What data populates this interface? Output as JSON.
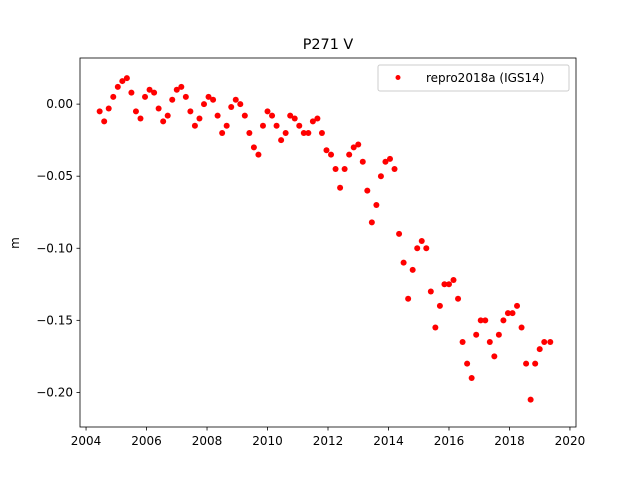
{
  "chart_data": {
    "type": "scatter",
    "title": "P271 V",
    "xlabel": "",
    "ylabel": "m",
    "xlim": [
      2003.8,
      2020.2
    ],
    "ylim": [
      -0.224,
      0.032
    ],
    "grid": false,
    "legend_position": "top-right",
    "x_ticks": [
      2004,
      2006,
      2008,
      2010,
      2012,
      2014,
      2016,
      2018,
      2020
    ],
    "x_tick_labels": [
      "2004",
      "2006",
      "2008",
      "2010",
      "2012",
      "2014",
      "2016",
      "2018",
      "2020"
    ],
    "y_ticks": [
      0.0,
      -0.05,
      -0.1,
      -0.15,
      -0.2
    ],
    "y_tick_labels": [
      "0.00",
      "−0.05",
      "−0.10",
      "−0.15",
      "−0.20"
    ],
    "series": [
      {
        "name": "repro2018a (IGS14)",
        "color": "#ff0000",
        "marker": "dot",
        "x": [
          2004.45,
          2004.6,
          2004.75,
          2004.9,
          2005.05,
          2005.2,
          2005.35,
          2005.5,
          2005.65,
          2005.8,
          2005.95,
          2006.1,
          2006.25,
          2006.4,
          2006.55,
          2006.7,
          2006.85,
          2007.0,
          2007.15,
          2007.3,
          2007.45,
          2007.6,
          2007.75,
          2007.9,
          2008.05,
          2008.2,
          2008.35,
          2008.5,
          2008.65,
          2008.8,
          2008.95,
          2009.1,
          2009.25,
          2009.4,
          2009.55,
          2009.7,
          2009.85,
          2010.0,
          2010.15,
          2010.3,
          2010.45,
          2010.6,
          2010.75,
          2010.9,
          2011.05,
          2011.2,
          2011.35,
          2011.5,
          2011.65,
          2011.8,
          2011.95,
          2012.1,
          2012.25,
          2012.4,
          2012.55,
          2012.7,
          2012.85,
          2013.0,
          2013.15,
          2013.3,
          2013.45,
          2013.6,
          2013.75,
          2013.9,
          2014.05,
          2014.2,
          2014.35,
          2014.5,
          2014.65,
          2014.8,
          2014.95,
          2015.1,
          2015.25,
          2015.4,
          2015.55,
          2015.7,
          2015.85,
          2016.0,
          2016.15,
          2016.3,
          2016.45,
          2016.6,
          2016.75,
          2016.9,
          2017.05,
          2017.2,
          2017.35,
          2017.5,
          2017.65,
          2017.8,
          2017.95,
          2018.1,
          2018.25,
          2018.4,
          2018.55,
          2018.7,
          2018.85,
          2019.0,
          2019.15,
          2019.35
        ],
        "y": [
          -0.005,
          -0.012,
          -0.003,
          0.005,
          0.012,
          0.016,
          0.018,
          0.008,
          -0.005,
          -0.01,
          0.005,
          0.01,
          0.008,
          -0.003,
          -0.012,
          -0.008,
          0.003,
          0.01,
          0.012,
          0.005,
          -0.005,
          -0.015,
          -0.01,
          0.0,
          0.005,
          0.003,
          -0.008,
          -0.02,
          -0.015,
          -0.002,
          0.003,
          0.0,
          -0.008,
          -0.02,
          -0.03,
          -0.035,
          -0.015,
          -0.005,
          -0.008,
          -0.015,
          -0.025,
          -0.02,
          -0.008,
          -0.01,
          -0.015,
          -0.02,
          -0.02,
          -0.012,
          -0.01,
          -0.02,
          -0.032,
          -0.035,
          -0.045,
          -0.058,
          -0.045,
          -0.035,
          -0.03,
          -0.028,
          -0.04,
          -0.06,
          -0.082,
          -0.07,
          -0.05,
          -0.04,
          -0.038,
          -0.045,
          -0.09,
          -0.11,
          -0.135,
          -0.115,
          -0.1,
          -0.095,
          -0.1,
          -0.13,
          -0.155,
          -0.14,
          -0.125,
          -0.125,
          -0.122,
          -0.135,
          -0.165,
          -0.18,
          -0.19,
          -0.16,
          -0.15,
          -0.15,
          -0.165,
          -0.175,
          -0.16,
          -0.15,
          -0.145,
          -0.145,
          -0.14,
          -0.155,
          -0.18,
          -0.205,
          -0.18,
          -0.17,
          -0.165,
          -0.165
        ]
      }
    ]
  }
}
